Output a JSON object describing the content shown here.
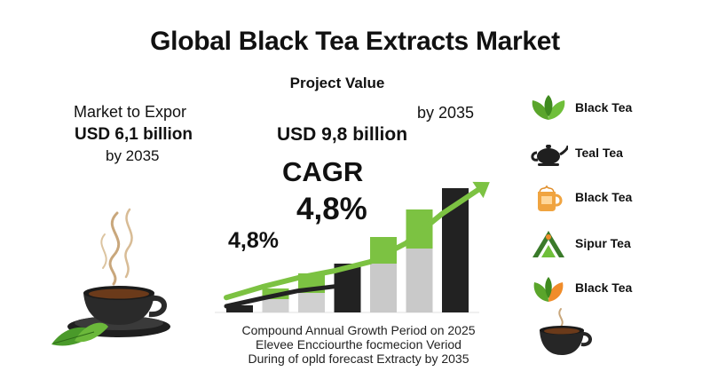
{
  "title": "Global Black Tea Extracts Market",
  "subtitle": "Project Value",
  "left_stat": {
    "label": "Market to Expor",
    "value": "USD 6,1 billion",
    "year": "by 2035"
  },
  "right_stat": {
    "year": "by 2035",
    "value": "USD 9,8 billion"
  },
  "cagr": {
    "label": "CAGR",
    "value_large": "4,8%",
    "value_small": "4,8%"
  },
  "footnote": [
    "Compound Annual Growth Period on 2025",
    "Elevee Encciourthe focmecion Veriod",
    "During of opld forecast Extracty by 2035"
  ],
  "legend": [
    {
      "label": "Black Tea",
      "icon": "tea-leaves-icon"
    },
    {
      "label": "Teal Tea",
      "icon": "teapot-icon"
    },
    {
      "label": "Black Tea",
      "icon": "tea-bag-cup-icon"
    },
    {
      "label": "Sipur Tea",
      "icon": "mountain-tea-icon"
    },
    {
      "label": "Black Tea",
      "icon": "tea-leaf-icon"
    }
  ],
  "colors": {
    "green": "#7cc242",
    "dark": "#222222",
    "gray": "#c9c9c9"
  },
  "chart_data": {
    "type": "bar",
    "title": "",
    "xlabel": "",
    "ylabel": "",
    "grid": false,
    "bars": [
      {
        "base": 0.08,
        "top": 0.0
      },
      {
        "base": 0.15,
        "top": 0.12
      },
      {
        "base": 0.22,
        "top": 0.22
      },
      {
        "base": 0.55,
        "top": 0.0
      },
      {
        "base": 0.55,
        "top": 0.3
      },
      {
        "base": 0.72,
        "top": 0.44
      },
      {
        "base": 1.4,
        "top": 0.0
      }
    ],
    "bar_colors": [
      "#222222",
      "#d0d0d0",
      "#d0d0d0",
      "#222222",
      "#c9c9c9",
      "#c9c9c9",
      "#222222"
    ],
    "trend_line": [
      0.18,
      0.38,
      0.55,
      0.68,
      0.85,
      1.2,
      1.75,
      2.2
    ],
    "dark_line": [
      0.05,
      0.2,
      0.34,
      0.42
    ]
  }
}
